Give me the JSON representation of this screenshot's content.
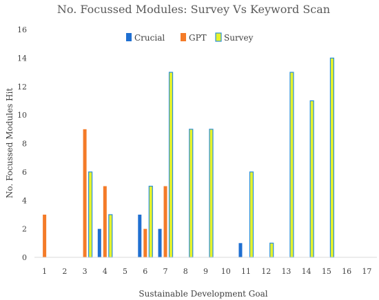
{
  "chart_data": {
    "type": "bar",
    "title": "No. Focussed Modules: Survey Vs Keyword Scan",
    "xlabel": "Sustainable Development Goal",
    "ylabel": "No. Focussed Modules Hit",
    "ylim": [
      0,
      16
    ],
    "yticks": [
      "0",
      "2",
      "4",
      "6",
      "8",
      "10",
      "12",
      "14",
      "16"
    ],
    "categories": [
      "1",
      "2",
      "3",
      "4",
      "5",
      "6",
      "7",
      "8",
      "9",
      "10",
      "11",
      "12",
      "13",
      "14",
      "15",
      "16",
      "17"
    ],
    "series": [
      {
        "name": "Crucial",
        "color": "#1f6fd1",
        "values": [
          0,
          0,
          0,
          2,
          0,
          3,
          2,
          0,
          0,
          0,
          1,
          0,
          0,
          0,
          0,
          0,
          0
        ]
      },
      {
        "name": "GPT",
        "color": "#f47b28",
        "values": [
          3,
          0,
          9,
          5,
          0,
          2,
          5,
          0,
          0,
          0,
          0,
          0,
          0,
          0,
          0,
          0,
          0
        ]
      },
      {
        "name": "Survey",
        "color": "#e6f22c",
        "stroke": "#2a8fd6",
        "values": [
          0,
          0,
          6,
          3,
          0,
          5,
          13,
          9,
          9,
          0,
          6,
          1,
          13,
          11,
          14,
          0,
          0
        ]
      }
    ],
    "legend": "top",
    "grid": false
  }
}
